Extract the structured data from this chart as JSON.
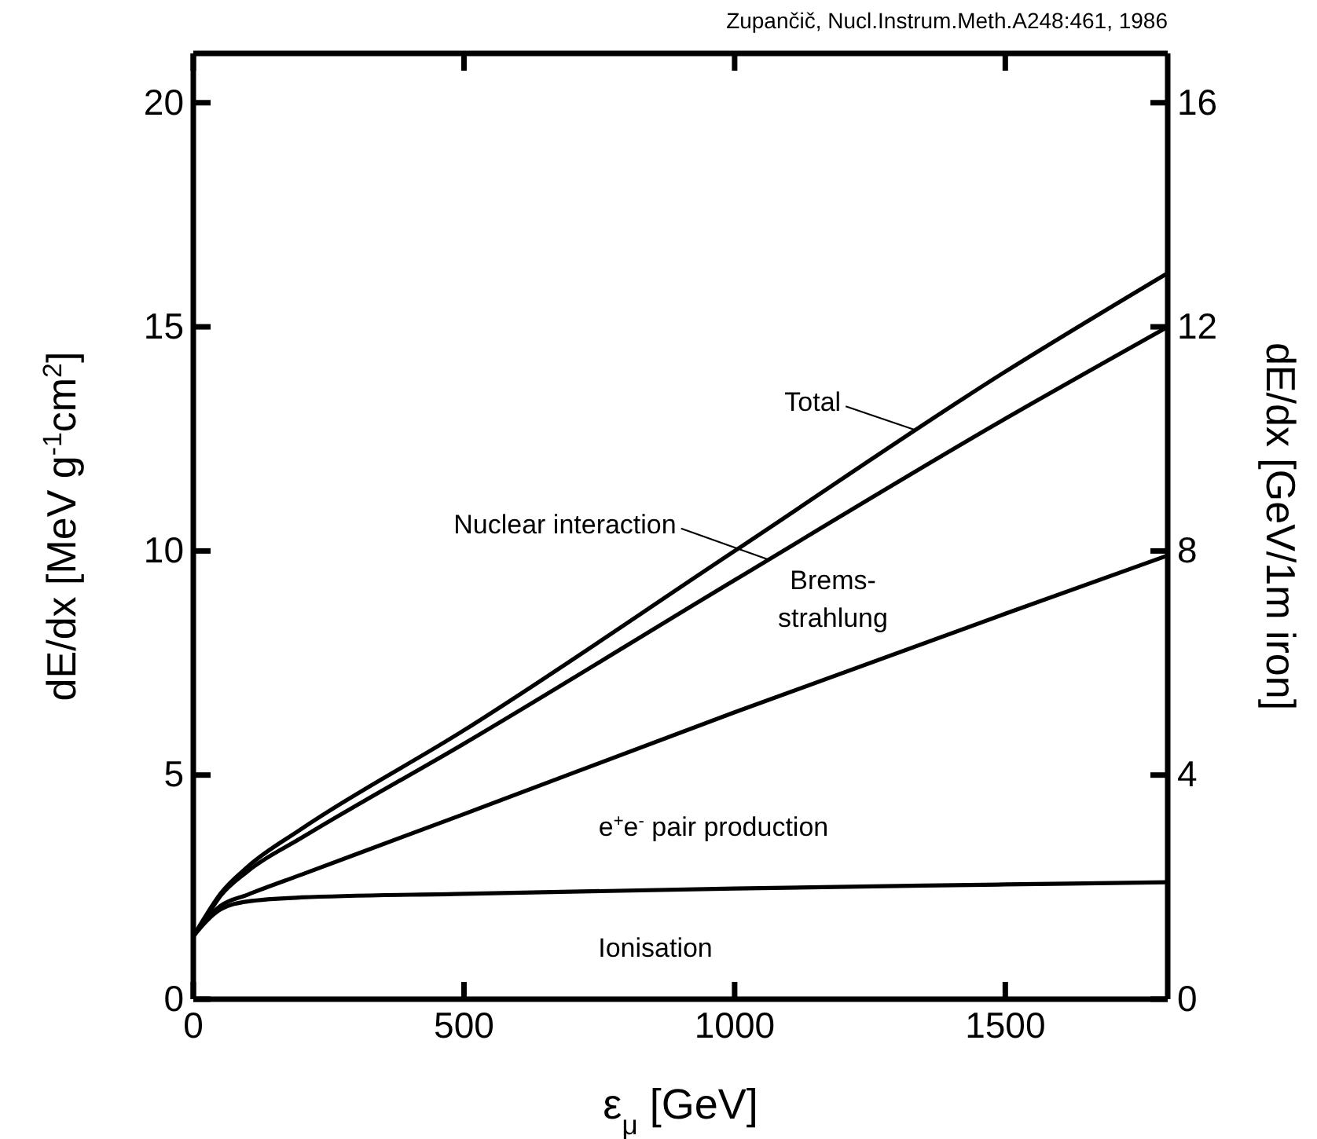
{
  "chart_data": {
    "type": "line",
    "xlabel": "ε$_{μ}$ [GeV]",
    "ylabel": "dE/dx [MeV g$^{-1}$cm$^{2}$]",
    "y2label": "dE/dx [GeV/1m iron]",
    "x": [
      0,
      25,
      50,
      100,
      200,
      500,
      1000,
      1500,
      1800
    ],
    "series": [
      {
        "color": "#000000",
        "values": [
          1.4,
          1.75,
          2.0,
          2.18,
          2.27,
          2.35,
          2.47,
          2.56,
          2.61
        ]
      },
      {
        "color": "#000000",
        "values": [
          1.4,
          1.8,
          2.08,
          2.33,
          2.78,
          4.13,
          6.4,
          8.6,
          9.9
        ]
      },
      {
        "color": "#000000",
        "values": [
          1.4,
          1.85,
          2.3,
          2.85,
          3.6,
          5.7,
          9.35,
          12.95,
          15.0
        ]
      },
      {
        "color": "#000000",
        "values": [
          1.4,
          1.9,
          2.35,
          2.95,
          3.8,
          6.0,
          10.0,
          14.0,
          16.2
        ]
      }
    ],
    "xlim": [
      0,
      1800
    ],
    "xticks": [
      0,
      500,
      1000,
      1500
    ],
    "ylim": [
      0,
      21.1
    ],
    "yticks": [
      0,
      5,
      10,
      15,
      20
    ],
    "y2lim": [
      0,
      16.88
    ],
    "y2ticks": [
      0,
      4,
      8,
      12,
      16
    ],
    "annotations": [
      {
        "text": "Total",
        "x": 1333,
        "y": 12.7
      },
      {
        "text": "Nuclear interaction",
        "x": 1064,
        "y": 9.8
      },
      "Brems-\nstrahlung",
      "e$^{+}$e$^{-}$ pair production",
      "Ionisation",
      "Zupančič, Nucl.Instrum.Meth.A248:461, 1986"
    ]
  }
}
